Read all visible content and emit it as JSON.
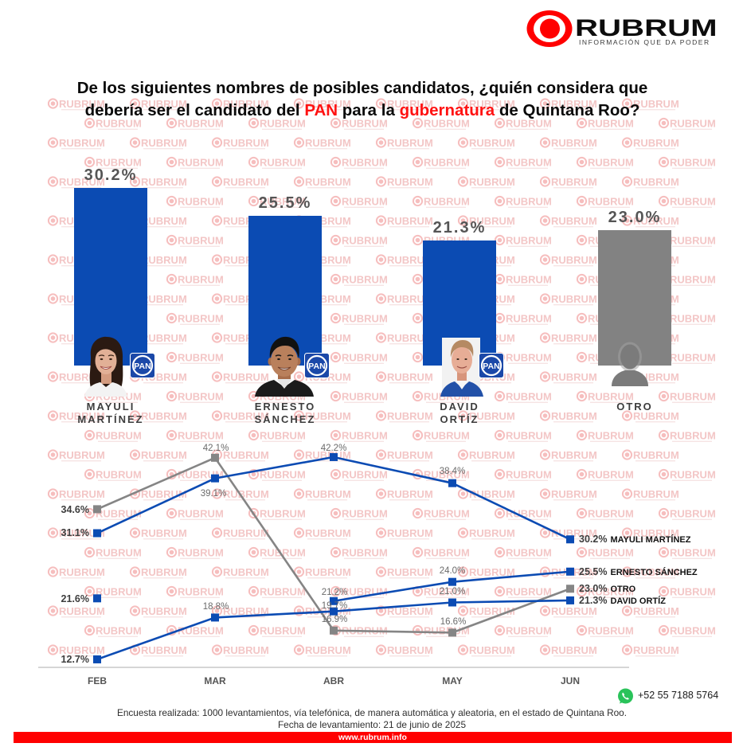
{
  "brand": {
    "name": "RUBRUM",
    "tagline": "INFORMACIÓN QUE DA PODER",
    "watermark": "RUBRUM",
    "website": "www.rubrum.info",
    "phone": "+52 55 7188 5764",
    "phone_icon": "whatsapp-icon"
  },
  "title": {
    "line1": "De los siguientes nombres de posibles candidatos, ¿quién considera que",
    "line2": {
      "p1": "debería ser el candidato del ",
      "party": "PAN",
      "p2": " para la ",
      "office": "gubernatura",
      "p3": " de Quintana Roo?"
    }
  },
  "colors": {
    "pan_blue": "#0b4bb3",
    "other_gray": "#858585",
    "brand_red": "#ff0000",
    "highlight_red": "#ff1212",
    "pan_logo_blue": "#1b48a8",
    "whatsapp_green": "#2ac35a"
  },
  "party": {
    "label": "PAN"
  },
  "candidates": [
    {
      "first": "MAYULI",
      "last": "MARTÍNEZ",
      "party": "PAN",
      "photo": "mayuli-photo"
    },
    {
      "first": "ERNESTO",
      "last": "SÁNCHEZ",
      "party": "PAN",
      "photo": "ernesto-photo"
    },
    {
      "first": "DAVID",
      "last": "ORTÍZ",
      "party": "PAN",
      "photo": "david-photo"
    },
    {
      "first": "OTRO",
      "last": "",
      "party": "",
      "photo": "person-silhouette-icon"
    }
  ],
  "footer": {
    "methodology": "Encuesta realizada: 1000 levantamientos, vía telefónica, de manera automática y aleatoria, en el estado de Quintana Roo.",
    "date": "Fecha de levantamiento: 21 de junio de 2025"
  },
  "chart_data": [
    {
      "type": "bar",
      "title": "De los siguientes nombres de posibles candidatos, ¿quién considera que debería ser el candidato del PAN para la gubernatura de Quintana Roo?",
      "categories": [
        "MAYULI MARTÍNEZ",
        "ERNESTO SÁNCHEZ",
        "DAVID ORTÍZ",
        "OTRO"
      ],
      "values": [
        30.2,
        25.5,
        21.3,
        23.0
      ],
      "value_labels": [
        "30.2%",
        "25.5%",
        "21.3%",
        "23.0%"
      ],
      "colors": [
        "#0b4bb3",
        "#0b4bb3",
        "#0b4bb3",
        "#828282"
      ],
      "xlabel": "",
      "ylabel": "",
      "grid": false
    },
    {
      "type": "line",
      "title": "",
      "categories": [
        "FEB",
        "MAR",
        "ABR",
        "MAY",
        "JUN"
      ],
      "xlabel": "",
      "ylabel": "",
      "grid": false,
      "legend": "end-of-line labels (right)",
      "series": [
        {
          "name": "MAYULI MARTÍNEZ",
          "color": "#0b4bb3",
          "values": [
            31.1,
            39.1,
            42.2,
            38.4,
            30.2
          ],
          "labels": [
            "31.1%",
            "39.1%",
            "42.2%",
            "38.4%",
            "30.2%"
          ]
        },
        {
          "name": "ERNESTO SÁNCHEZ",
          "color": "#0b4bb3",
          "values": [
            21.6,
            null,
            21.2,
            24.0,
            25.5
          ],
          "labels": [
            "21.6%",
            null,
            "21.2%",
            "24.0%",
            "25.5%"
          ]
        },
        {
          "name": "OTRO",
          "color": "#858585",
          "values": [
            34.6,
            42.1,
            16.9,
            16.6,
            23.0
          ],
          "labels": [
            "34.6%",
            "42.1%",
            "16.9%",
            "16.6%",
            "23.0%"
          ]
        },
        {
          "name": "DAVID ORTÍZ",
          "color": "#0b4bb3",
          "values": [
            12.7,
            18.8,
            19.7,
            21.0,
            21.3
          ],
          "labels": [
            "12.7%",
            "18.8%",
            "19.7%",
            "21.0%",
            "21.3%"
          ]
        }
      ]
    }
  ]
}
